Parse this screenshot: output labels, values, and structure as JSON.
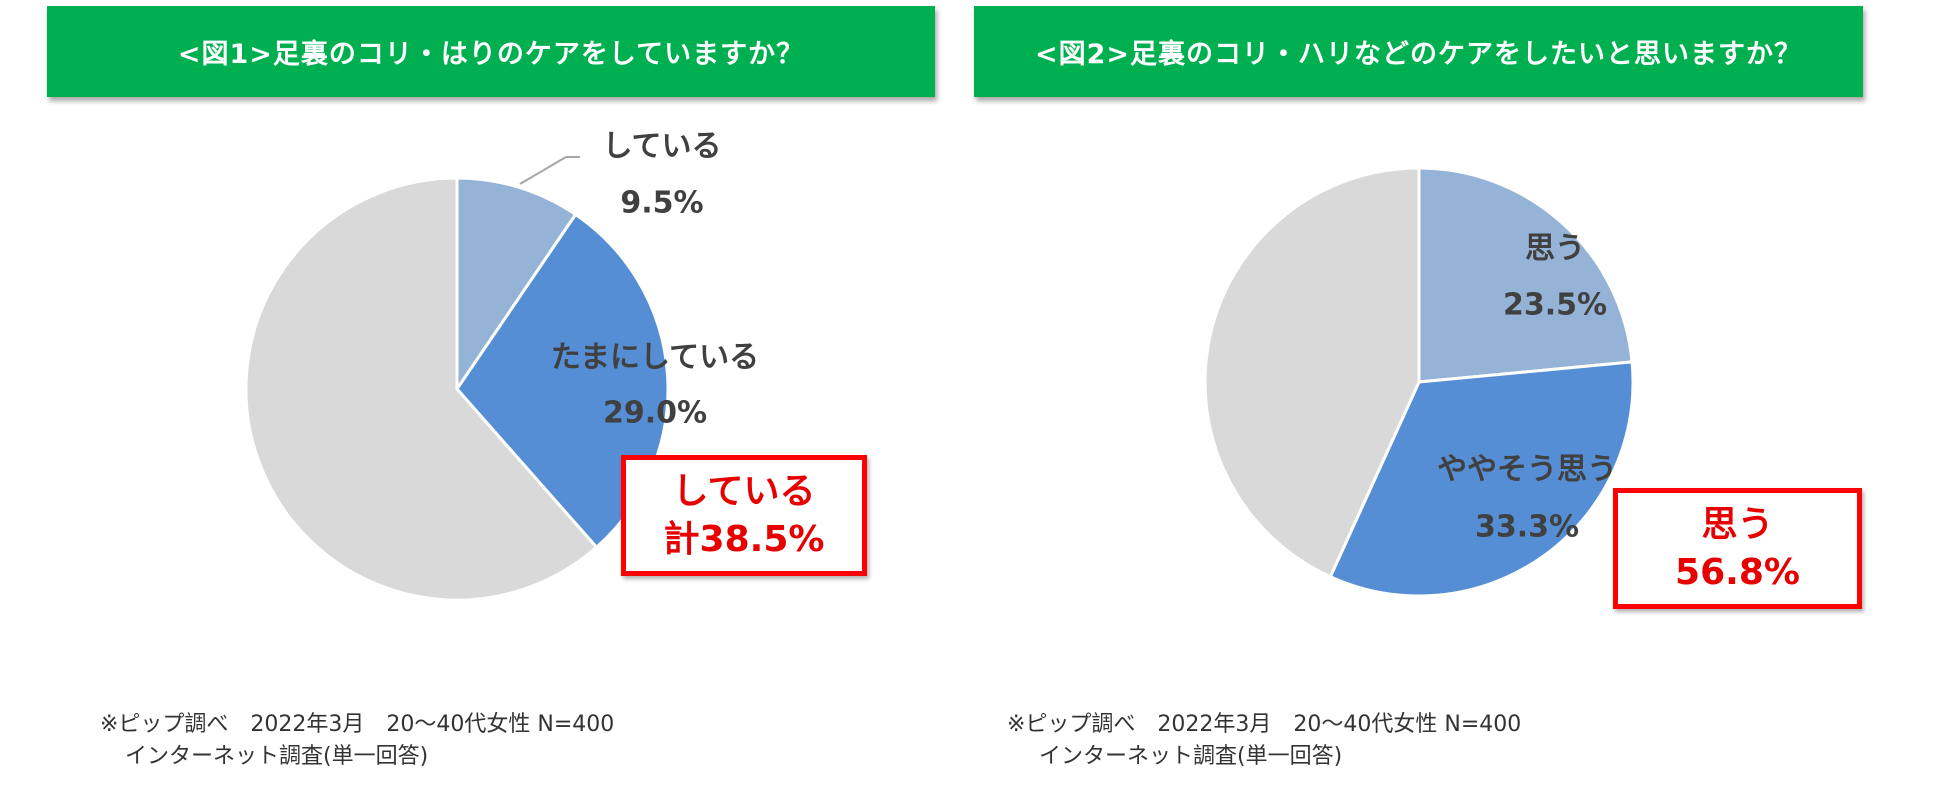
{
  "colors": {
    "header_bg": "#00b050",
    "slice_1": "#95b3d7",
    "slice_2": "#558ed5",
    "slice_rest": "#d9d9d9",
    "highlight": "#ff0000"
  },
  "chart_data": [
    {
      "type": "pie",
      "title": "<図1>足裏のコリ・はりのケアをしていますか？",
      "slices": [
        {
          "label": "している",
          "value": 9.5,
          "value_label": "9.5%"
        },
        {
          "label": "たまにしている",
          "value": 29.0,
          "value_label": "29.0%"
        },
        {
          "label": "",
          "value": 61.5
        }
      ],
      "callout": {
        "line1": "している",
        "line2": "計38.5%"
      },
      "footnote": {
        "line1": "※ピップ調べ　2022年3月　20～40代女性 N=400",
        "line2": "インターネット調査(単一回答)"
      }
    },
    {
      "type": "pie",
      "title": "<図2>足裏のコリ・ハリなどのケアをしたいと思いますか？",
      "slices": [
        {
          "label": "思う",
          "value": 23.5,
          "value_label": "23.5%"
        },
        {
          "label": "ややそう思う",
          "value": 33.3,
          "value_label": "33.3%"
        },
        {
          "label": "",
          "value": 43.2
        }
      ],
      "callout": {
        "line1": "思う",
        "line2": "56.8%"
      },
      "footnote": {
        "line1": "※ピップ調べ　2022年3月　20～40代女性 N=400",
        "line2": "インターネット調査(単一回答)"
      }
    }
  ]
}
